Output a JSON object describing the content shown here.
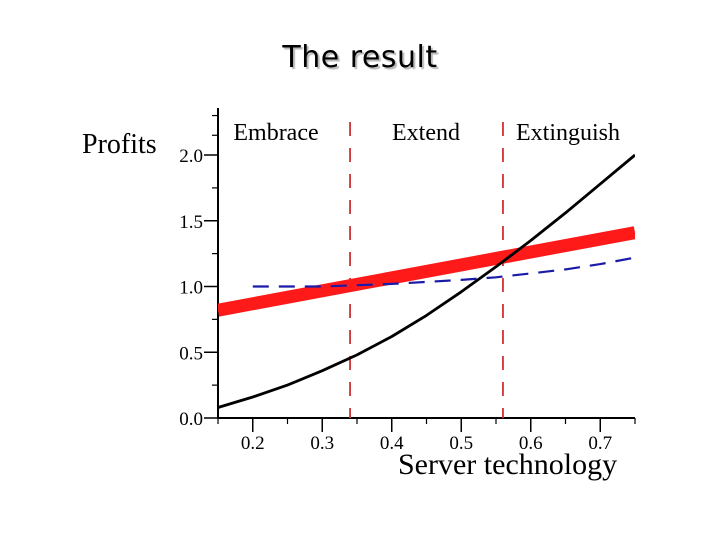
{
  "slide": {
    "title": "The result"
  },
  "chart_data": {
    "type": "line",
    "title": "",
    "ylabel": "Profits",
    "xlabel": "Server technology",
    "xlim": [
      0.15,
      0.75
    ],
    "ylim": [
      0.0,
      2.0
    ],
    "x_ticks": [
      0.2,
      0.3,
      0.4,
      0.5,
      0.6,
      0.7
    ],
    "y_ticks": [
      0.0,
      0.5,
      1.0,
      1.5,
      2.0
    ],
    "x_tick_labels": [
      "0.2",
      "0.3",
      "0.4",
      "0.5",
      "0.6",
      "0.7"
    ],
    "y_tick_labels": [
      "0.0",
      "0.5",
      "1.0",
      "1.5",
      "2.0"
    ],
    "regions": [
      {
        "label": "Embrace",
        "x_from": 0.15,
        "x_to": 0.34
      },
      {
        "label": "Extend",
        "x_from": 0.34,
        "x_to": 0.56
      },
      {
        "label": "Extinguish",
        "x_from": 0.56,
        "x_to": 0.75
      }
    ],
    "boundaries": [
      0.34,
      0.56
    ],
    "series": [
      {
        "style": "solid-thick",
        "color": "#ff1a1a",
        "x": [
          0.15,
          0.75
        ],
        "y": [
          0.82,
          1.41
        ]
      },
      {
        "style": "dashed",
        "color": "#1a1aa8",
        "x": [
          0.2,
          0.3,
          0.4,
          0.5,
          0.55,
          0.6,
          0.65,
          0.7,
          0.75
        ],
        "y": [
          1.0,
          1.0,
          1.02,
          1.05,
          1.07,
          1.1,
          1.13,
          1.17,
          1.22
        ]
      },
      {
        "style": "solid",
        "color": "#000000",
        "x": [
          0.15,
          0.2,
          0.25,
          0.3,
          0.35,
          0.4,
          0.45,
          0.5,
          0.55,
          0.6,
          0.65,
          0.7,
          0.75
        ],
        "y": [
          0.08,
          0.16,
          0.25,
          0.36,
          0.48,
          0.62,
          0.78,
          0.96,
          1.15,
          1.35,
          1.56,
          1.78,
          2.0
        ]
      }
    ]
  }
}
